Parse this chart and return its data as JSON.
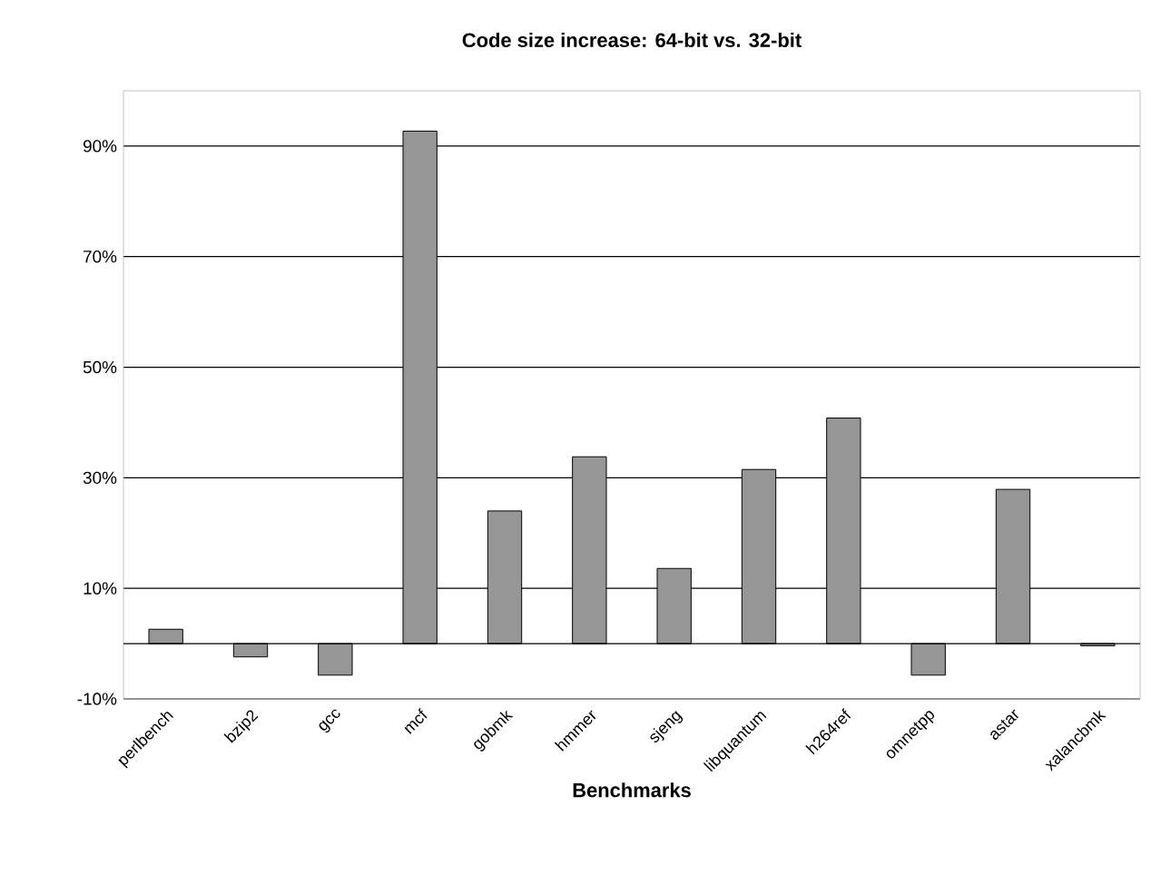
{
  "chart_data": {
    "type": "bar",
    "title": "Code size increase: 64-bit vs. 32-bit",
    "xlabel": "Benchmarks",
    "categories": [
      "perlbench",
      "bzip2",
      "gcc",
      "mcf",
      "gobmk",
      "hmmer",
      "sjeng",
      "libquantum",
      "h264ref",
      "omnetpp",
      "astar",
      "xalancbmk"
    ],
    "values": [
      2.6,
      -2.4,
      -5.7,
      92.7,
      24.0,
      33.8,
      13.6,
      31.5,
      40.8,
      -5.7,
      27.9,
      -0.4
    ],
    "color": "#969696",
    "ylim": [
      -10,
      100
    ],
    "yticks": [
      {
        "value": -10,
        "label": "-10%"
      },
      {
        "value": 10,
        "label": "10%"
      },
      {
        "value": 30,
        "label": "30%"
      },
      {
        "value": 50,
        "label": "50%"
      },
      {
        "value": 70,
        "label": "70%"
      },
      {
        "value": 90,
        "label": "90%"
      }
    ],
    "grid": "y"
  }
}
